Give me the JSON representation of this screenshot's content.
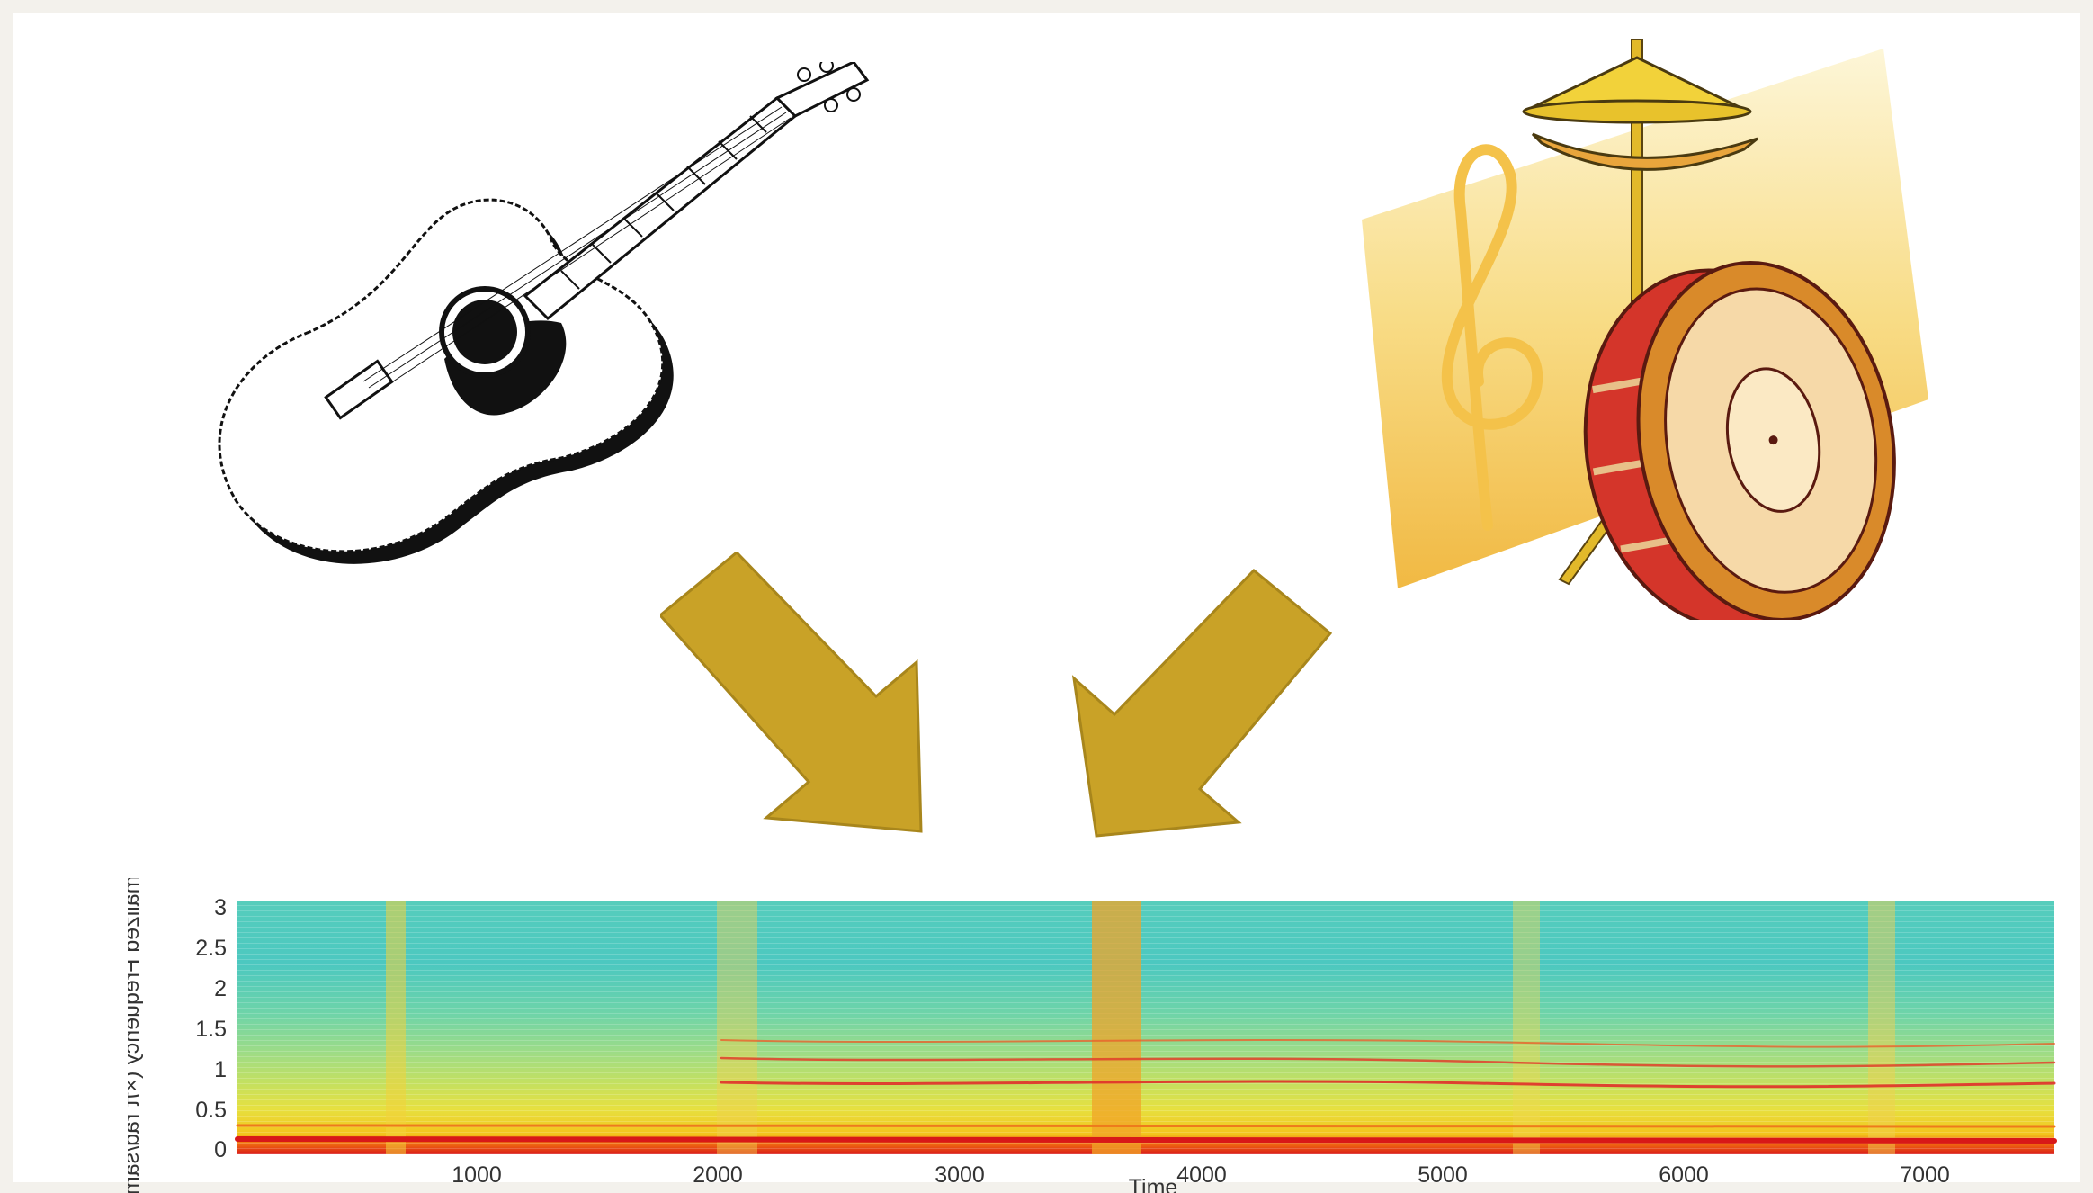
{
  "figure": {
    "inputs": [
      {
        "name": "guitar",
        "icon": "guitar-icon"
      },
      {
        "name": "drums",
        "icon": "drum-kit-icon"
      }
    ],
    "arrow_color": "#c9a227",
    "arrow_stroke": "#a8861c"
  },
  "chart_data": {
    "type": "heatmap",
    "title": "",
    "xlabel": "Time",
    "ylabel": "Normalized Frequency (×π rad/sample)",
    "x_ticks": [
      "1000",
      "2000",
      "3000",
      "4000",
      "5000",
      "6000",
      "7000"
    ],
    "y_ticks": [
      "0",
      "0.5",
      "1",
      "1.5",
      "2",
      "2.5",
      "3"
    ],
    "xlim": [
      0,
      7600
    ],
    "ylim": [
      0,
      3.14
    ],
    "colormap": "jet",
    "grid": false
  }
}
